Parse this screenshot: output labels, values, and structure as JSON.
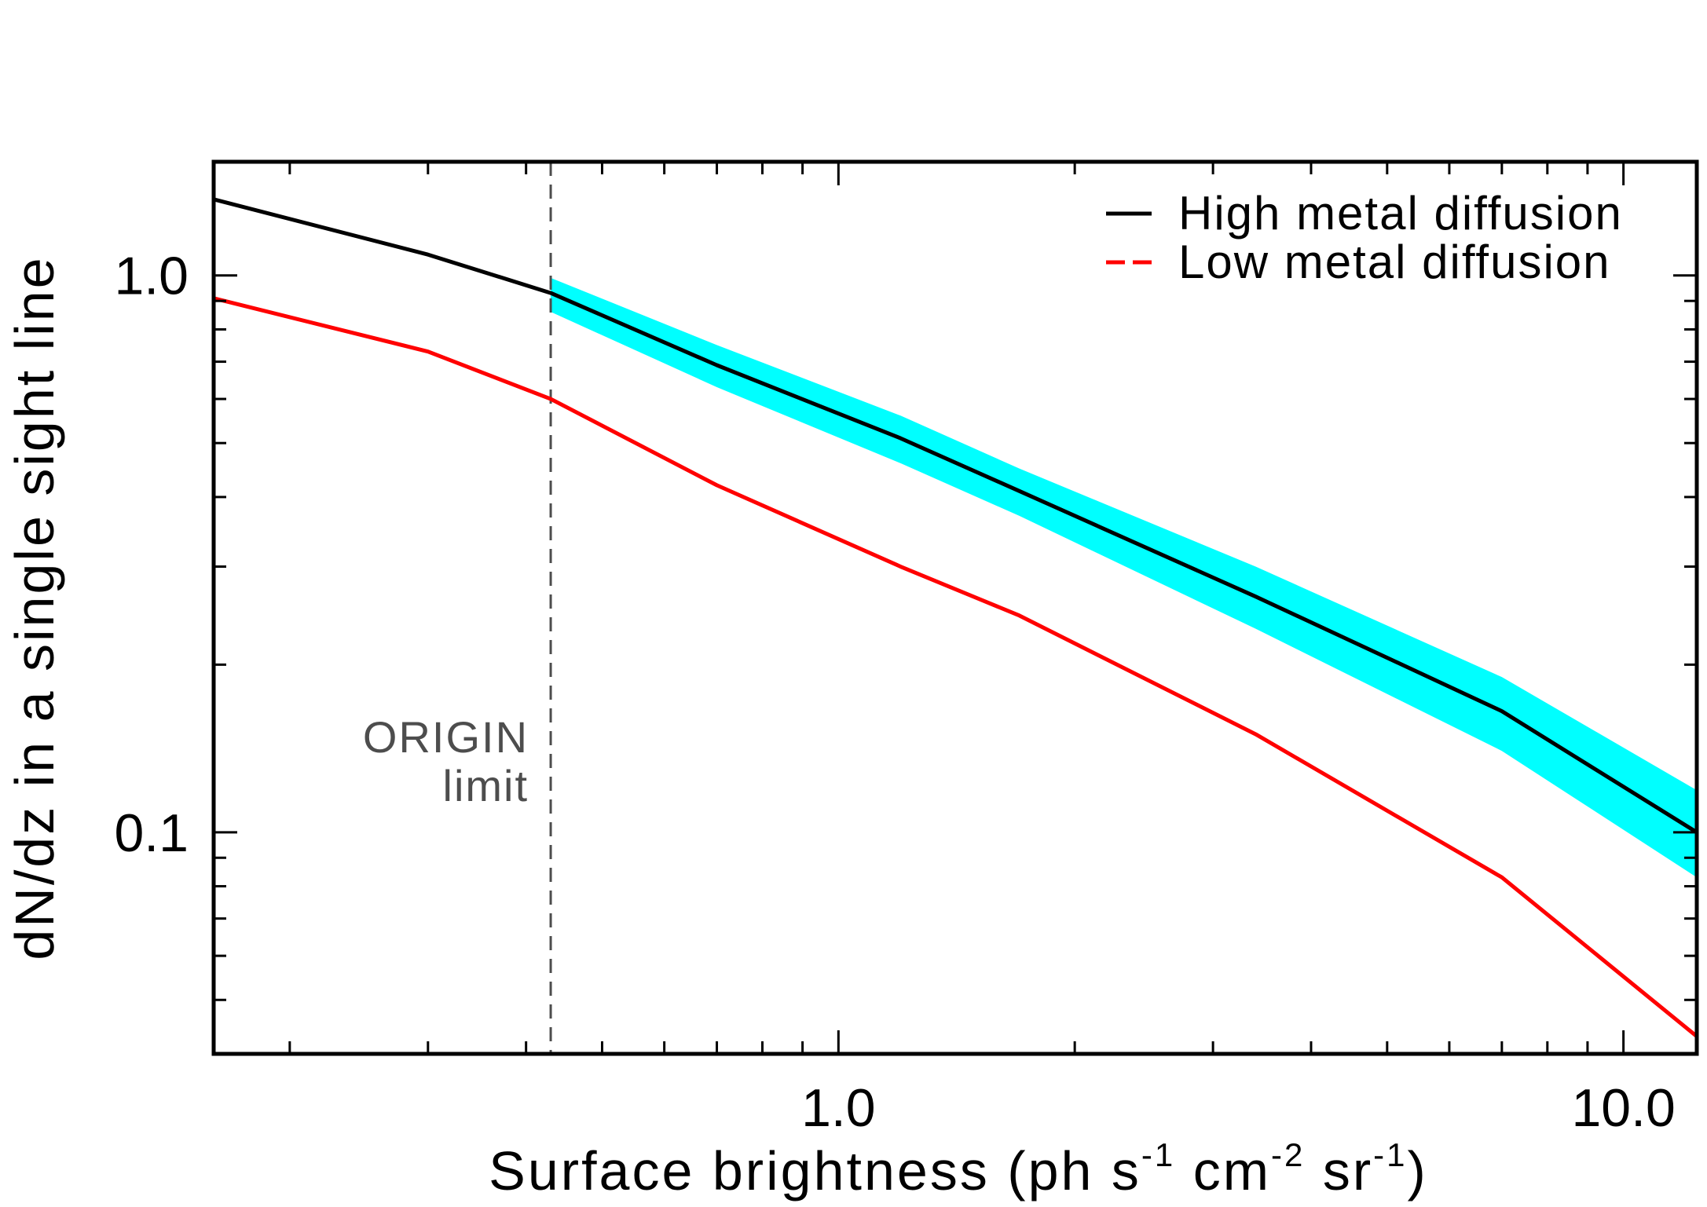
{
  "chart_data": {
    "type": "line",
    "xscale": "log",
    "yscale": "log",
    "xlim": [
      0.16,
      12.4
    ],
    "ylim": [
      0.04,
      1.6
    ],
    "xlabel": {
      "main": "Surface brightness (ph s",
      "sup1": "-1",
      "mid1": " cm",
      "sup2": "-2",
      "mid2": " sr",
      "sup3": "-1",
      "end": ")"
    },
    "ylabel": "dN/dz in a single sight line",
    "xticks": [
      {
        "value": 1.0,
        "label": "1.0"
      },
      {
        "value": 10.0,
        "label": "10.0"
      }
    ],
    "yticks": [
      {
        "value": 1.0,
        "label": "1.0"
      },
      {
        "value": 0.1,
        "label": "0.1"
      }
    ],
    "grid": false,
    "legend_position": "top-right",
    "series": [
      {
        "name": "High metal diffusion",
        "style": "solid",
        "color": "#000000",
        "x": [
          0.16,
          0.3,
          0.43,
          0.7,
          1.2,
          1.7,
          3.4,
          7.0,
          12.4
        ],
        "y": [
          1.37,
          1.09,
          0.93,
          0.69,
          0.51,
          0.41,
          0.265,
          0.165,
          0.1
        ]
      },
      {
        "name": "Low metal diffusion",
        "style": "dashed",
        "color": "#ff0000",
        "x": [
          0.16,
          0.3,
          0.43,
          0.7,
          1.2,
          1.7,
          3.4,
          7.0,
          12.4
        ],
        "y": [
          0.91,
          0.73,
          0.6,
          0.42,
          0.3,
          0.245,
          0.15,
          0.083,
          0.043
        ]
      }
    ],
    "band": {
      "series": "High metal diffusion",
      "color": "#00ffff",
      "x": [
        0.43,
        0.7,
        1.2,
        1.7,
        3.4,
        7.0,
        12.4
      ],
      "upper": [
        0.99,
        0.75,
        0.56,
        0.45,
        0.3,
        0.19,
        0.119
      ],
      "lower": [
        0.86,
        0.63,
        0.46,
        0.37,
        0.232,
        0.14,
        0.083
      ]
    },
    "vline": {
      "x": 0.43,
      "color": "#4d4d4d",
      "label_line1": "ORIGIN",
      "label_line2": "limit"
    }
  }
}
